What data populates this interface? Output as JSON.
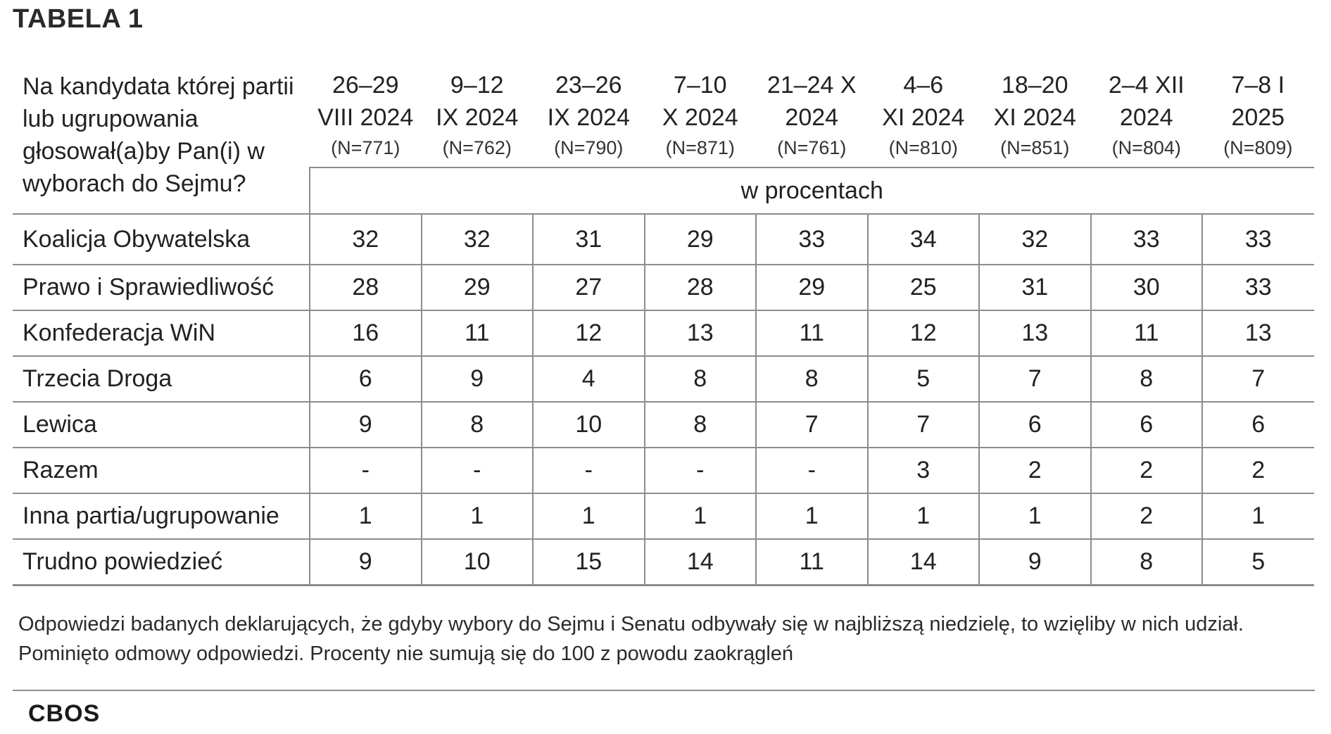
{
  "title": "TABELA 1",
  "table": {
    "question": "Na kandydata której partii lub ugrupowania głosował(a)by Pan(i) w wyborach do Sejmu?",
    "columns": [
      {
        "date1": "26–29",
        "date2": "VIII 2024",
        "n": "(N=771)"
      },
      {
        "date1": "9–12",
        "date2": "IX 2024",
        "n": "(N=762)"
      },
      {
        "date1": "23–26",
        "date2": "IX 2024",
        "n": "(N=790)"
      },
      {
        "date1": "7–10",
        "date2": "X 2024",
        "n": "(N=871)"
      },
      {
        "date1": "21–24 X",
        "date2": "2024",
        "n": "(N=761)"
      },
      {
        "date1": "4–6",
        "date2": "XI 2024",
        "n": "(N=810)"
      },
      {
        "date1": "18–20",
        "date2": "XI 2024",
        "n": "(N=851)"
      },
      {
        "date1": "2–4 XII",
        "date2": "2024",
        "n": "(N=804)"
      },
      {
        "date1": "7–8 I",
        "date2": "2025",
        "n": "(N=809)"
      }
    ],
    "unit": "w procentach",
    "rows": [
      {
        "label": "Koalicja Obywatelska",
        "values": [
          "32",
          "32",
          "31",
          "29",
          "33",
          "34",
          "32",
          "33",
          "33"
        ]
      },
      {
        "label": "Prawo i Sprawiedliwość",
        "values": [
          "28",
          "29",
          "27",
          "28",
          "29",
          "25",
          "31",
          "30",
          "33"
        ]
      },
      {
        "label": "Konfederacja WiN",
        "values": [
          "16",
          "11",
          "12",
          "13",
          "11",
          "12",
          "13",
          "11",
          "13"
        ]
      },
      {
        "label": "Trzecia Droga",
        "values": [
          "6",
          "9",
          "4",
          "8",
          "8",
          "5",
          "7",
          "8",
          "7"
        ]
      },
      {
        "label": "Lewica",
        "values": [
          "9",
          "8",
          "10",
          "8",
          "7",
          "7",
          "6",
          "6",
          "6"
        ]
      },
      {
        "label": "Razem",
        "values": [
          "-",
          "-",
          "-",
          "-",
          "-",
          "3",
          "2",
          "2",
          "2"
        ]
      },
      {
        "label": "Inna partia/ugrupowanie",
        "values": [
          "1",
          "1",
          "1",
          "1",
          "1",
          "1",
          "1",
          "2",
          "1"
        ]
      },
      {
        "label": "Trudno powiedzieć",
        "values": [
          "9",
          "10",
          "15",
          "14",
          "11",
          "14",
          "9",
          "8",
          "5"
        ]
      }
    ]
  },
  "note": "Odpowiedzi badanych deklarujących, że gdyby wybory do Sejmu i Senatu odbywały się w najbliższą niedzielę, to wzięliby w nich udział. Pominięto odmowy odpowiedzi. Procenty nie sumują się do 100 z powodu zaokrągleń",
  "logo": "CBOS"
}
